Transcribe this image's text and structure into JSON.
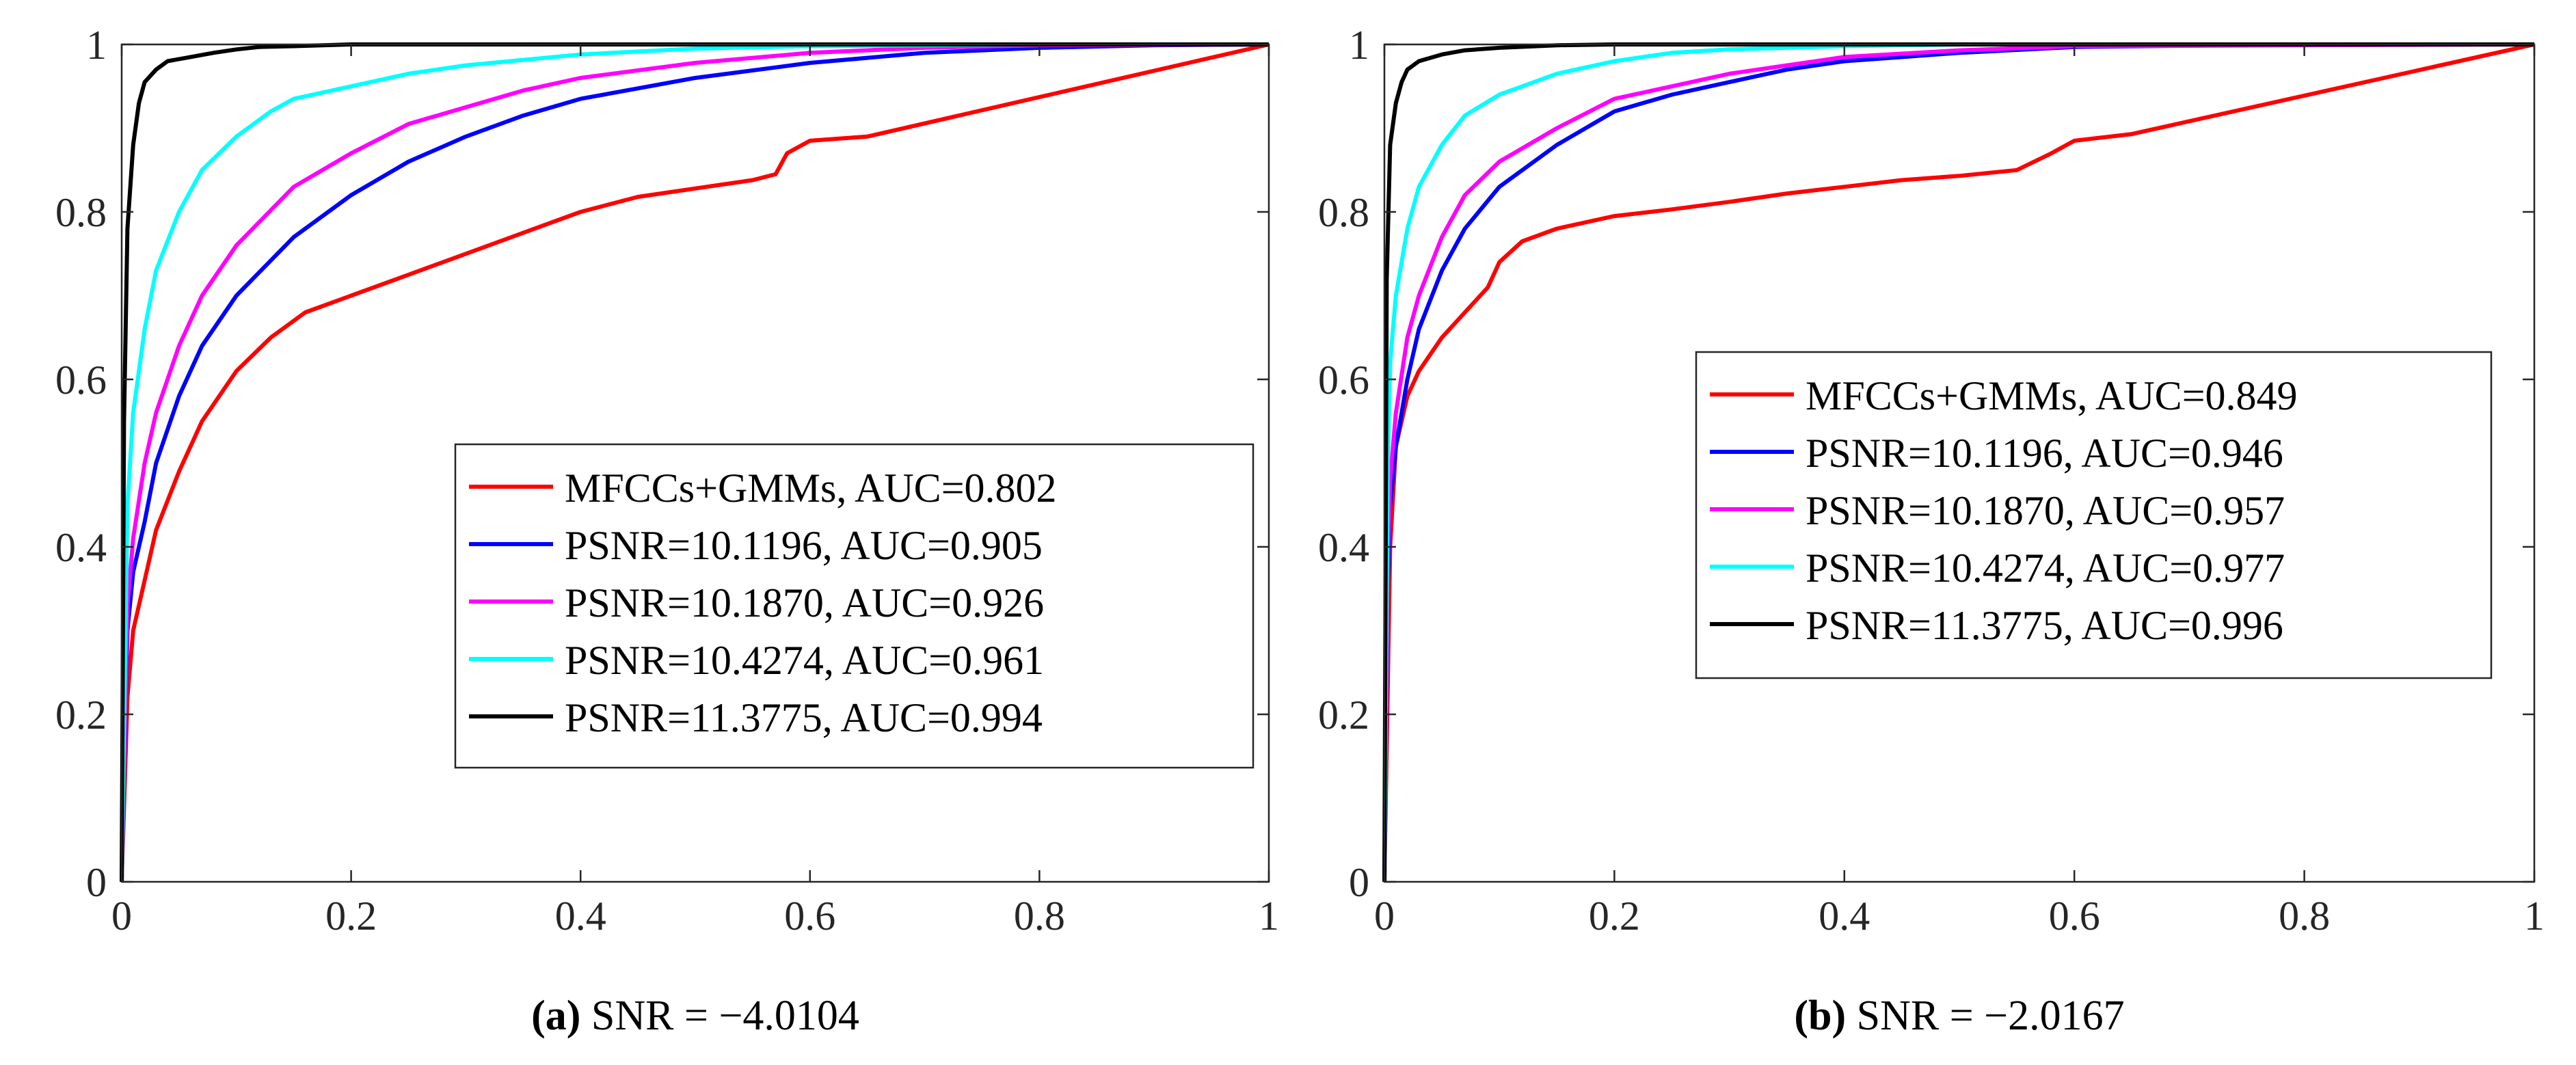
{
  "chart_data": [
    {
      "type": "line",
      "caption_letter": "(a)",
      "caption_rest": " SNR = −4.0104",
      "xlim": [
        0,
        1
      ],
      "ylim": [
        0,
        1
      ],
      "xticks": [
        "0",
        "0.2",
        "0.4",
        "0.6",
        "0.8",
        "1"
      ],
      "yticks": [
        "0",
        "0.2",
        "0.4",
        "0.6",
        "0.8",
        "1"
      ],
      "legend_position": "center-right",
      "series": [
        {
          "name": "MFCCs+GMMs, AUC=0.802",
          "color": "#ff0000",
          "x": [
            0,
            0.005,
            0.01,
            0.02,
            0.03,
            0.05,
            0.07,
            0.1,
            0.13,
            0.16,
            0.2,
            0.25,
            0.3,
            0.35,
            0.4,
            0.45,
            0.5,
            0.55,
            0.57,
            0.58,
            0.6,
            0.65,
            1.0
          ],
          "y": [
            0,
            0.22,
            0.3,
            0.36,
            0.42,
            0.49,
            0.55,
            0.61,
            0.65,
            0.68,
            0.7,
            0.725,
            0.75,
            0.775,
            0.8,
            0.818,
            0.828,
            0.838,
            0.845,
            0.87,
            0.885,
            0.89,
            1.0
          ]
        },
        {
          "name": "PSNR=10.1196, AUC=0.905",
          "color": "#0000ff",
          "x": [
            0,
            0.005,
            0.01,
            0.02,
            0.03,
            0.05,
            0.07,
            0.1,
            0.15,
            0.2,
            0.25,
            0.3,
            0.35,
            0.4,
            0.5,
            0.6,
            0.7,
            0.8,
            0.9,
            1.0
          ],
          "y": [
            0,
            0.3,
            0.37,
            0.43,
            0.5,
            0.58,
            0.64,
            0.7,
            0.77,
            0.82,
            0.86,
            0.89,
            0.915,
            0.935,
            0.96,
            0.978,
            0.99,
            0.996,
            0.999,
            1.0
          ]
        },
        {
          "name": "PSNR=10.1870, AUC=0.926",
          "color": "#ff00ff",
          "x": [
            0,
            0.005,
            0.01,
            0.02,
            0.03,
            0.05,
            0.07,
            0.1,
            0.15,
            0.2,
            0.25,
            0.3,
            0.35,
            0.4,
            0.5,
            0.6,
            0.7,
            0.8,
            1.0
          ],
          "y": [
            0,
            0.33,
            0.41,
            0.5,
            0.56,
            0.64,
            0.7,
            0.76,
            0.83,
            0.87,
            0.905,
            0.925,
            0.945,
            0.96,
            0.978,
            0.99,
            0.996,
            0.999,
            1.0
          ]
        },
        {
          "name": "PSNR=10.4274, AUC=0.961",
          "color": "#00ffff",
          "x": [
            0,
            0.005,
            0.01,
            0.02,
            0.03,
            0.05,
            0.07,
            0.1,
            0.13,
            0.15,
            0.2,
            0.25,
            0.3,
            0.4,
            0.5,
            0.6,
            0.8,
            1.0
          ],
          "y": [
            0,
            0.45,
            0.56,
            0.66,
            0.73,
            0.8,
            0.85,
            0.89,
            0.92,
            0.935,
            0.95,
            0.965,
            0.975,
            0.988,
            0.995,
            0.998,
            1.0,
            1.0
          ]
        },
        {
          "name": "PSNR=11.3775, AUC=0.994",
          "color": "#000000",
          "x": [
            0,
            0.002,
            0.005,
            0.01,
            0.015,
            0.02,
            0.03,
            0.04,
            0.06,
            0.08,
            0.1,
            0.12,
            0.15,
            0.2,
            0.3,
            1.0
          ],
          "y": [
            0,
            0.55,
            0.78,
            0.88,
            0.93,
            0.955,
            0.97,
            0.98,
            0.985,
            0.99,
            0.994,
            0.997,
            0.998,
            1.0,
            1.0,
            1.0
          ]
        }
      ]
    },
    {
      "type": "line",
      "caption_letter": "(b)",
      "caption_rest": " SNR = −2.0167",
      "xlim": [
        0,
        1
      ],
      "ylim": [
        0,
        1
      ],
      "xticks": [
        "0",
        "0.2",
        "0.4",
        "0.6",
        "0.8",
        "1"
      ],
      "yticks": [
        "0",
        "0.2",
        "0.4",
        "0.6",
        "0.8",
        "1"
      ],
      "legend_position": "center-right",
      "series": [
        {
          "name": "MFCCs+GMMs, AUC=0.849",
          "color": "#ff0000",
          "x": [
            0,
            0.005,
            0.01,
            0.02,
            0.03,
            0.05,
            0.07,
            0.09,
            0.1,
            0.12,
            0.15,
            0.2,
            0.25,
            0.3,
            0.35,
            0.4,
            0.45,
            0.5,
            0.55,
            0.58,
            0.6,
            0.65,
            1.0
          ],
          "y": [
            0,
            0.4,
            0.52,
            0.58,
            0.61,
            0.65,
            0.68,
            0.71,
            0.74,
            0.765,
            0.78,
            0.795,
            0.803,
            0.812,
            0.822,
            0.83,
            0.838,
            0.843,
            0.85,
            0.87,
            0.885,
            0.893,
            1.0
          ]
        },
        {
          "name": "PSNR=10.1196, AUC=0.946",
          "color": "#0000ff",
          "x": [
            0,
            0.003,
            0.005,
            0.01,
            0.02,
            0.03,
            0.05,
            0.07,
            0.1,
            0.15,
            0.2,
            0.25,
            0.3,
            0.35,
            0.4,
            0.5,
            0.6,
            0.8,
            1.0
          ],
          "y": [
            0,
            0.35,
            0.45,
            0.52,
            0.6,
            0.66,
            0.73,
            0.78,
            0.83,
            0.88,
            0.92,
            0.94,
            0.955,
            0.97,
            0.98,
            0.99,
            0.997,
            1.0,
            1.0
          ]
        },
        {
          "name": "PSNR=10.1870, AUC=0.957",
          "color": "#ff00ff",
          "x": [
            0,
            0.003,
            0.005,
            0.01,
            0.02,
            0.03,
            0.05,
            0.07,
            0.1,
            0.15,
            0.2,
            0.25,
            0.3,
            0.35,
            0.4,
            0.5,
            0.6,
            1.0
          ],
          "y": [
            0,
            0.38,
            0.48,
            0.56,
            0.65,
            0.7,
            0.77,
            0.82,
            0.86,
            0.9,
            0.935,
            0.95,
            0.965,
            0.975,
            0.985,
            0.993,
            0.998,
            1.0
          ]
        },
        {
          "name": "PSNR=10.4274, AUC=0.977",
          "color": "#00ffff",
          "x": [
            0,
            0.003,
            0.005,
            0.01,
            0.02,
            0.03,
            0.05,
            0.07,
            0.1,
            0.15,
            0.2,
            0.25,
            0.3,
            0.4,
            0.5,
            0.6,
            1.0
          ],
          "y": [
            0,
            0.5,
            0.62,
            0.7,
            0.78,
            0.83,
            0.88,
            0.915,
            0.94,
            0.965,
            0.98,
            0.99,
            0.994,
            0.998,
            1.0,
            1.0,
            1.0
          ]
        },
        {
          "name": "PSNR=11.3775, AUC=0.996",
          "color": "#000000",
          "x": [
            0,
            0.002,
            0.005,
            0.01,
            0.015,
            0.02,
            0.03,
            0.05,
            0.07,
            0.1,
            0.15,
            0.2,
            1.0
          ],
          "y": [
            0,
            0.72,
            0.88,
            0.93,
            0.955,
            0.97,
            0.98,
            0.988,
            0.993,
            0.996,
            0.999,
            1.0,
            1.0
          ]
        }
      ]
    }
  ]
}
